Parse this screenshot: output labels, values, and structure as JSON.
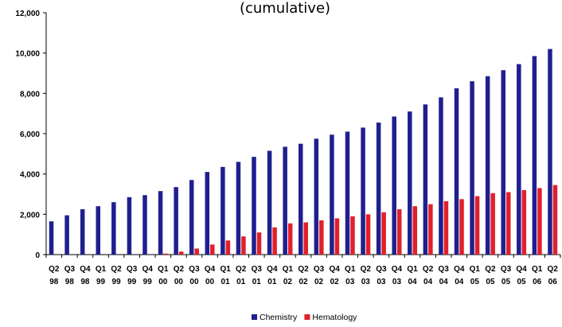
{
  "chart_data": {
    "type": "bar",
    "title": "(cumulative)",
    "xlabel": "",
    "ylabel": "",
    "ylim": [
      0,
      12000
    ],
    "yticks": [
      "0",
      "2,000",
      "4,000",
      "6,000",
      "8,000",
      "10,000",
      "12,000"
    ],
    "ytick_values": [
      0,
      2000,
      4000,
      6000,
      8000,
      10000,
      12000
    ],
    "grid": false,
    "legend_position": "bottom",
    "categories": [
      [
        "Q2",
        "98"
      ],
      [
        "Q3",
        "98"
      ],
      [
        "Q4",
        "98"
      ],
      [
        "Q1",
        "99"
      ],
      [
        "Q2",
        "99"
      ],
      [
        "Q3",
        "99"
      ],
      [
        "Q4",
        "99"
      ],
      [
        "Q1",
        "00"
      ],
      [
        "Q2",
        "00"
      ],
      [
        "Q3",
        "00"
      ],
      [
        "Q4",
        "00"
      ],
      [
        "Q1",
        "01"
      ],
      [
        "Q2",
        "01"
      ],
      [
        "Q3",
        "01"
      ],
      [
        "Q4",
        "01"
      ],
      [
        "Q1",
        "02"
      ],
      [
        "Q2",
        "02"
      ],
      [
        "Q3",
        "02"
      ],
      [
        "Q4",
        "02"
      ],
      [
        "Q1",
        "03"
      ],
      [
        "Q2",
        "03"
      ],
      [
        "Q3",
        "03"
      ],
      [
        "Q4",
        "03"
      ],
      [
        "Q1",
        "04"
      ],
      [
        "Q2",
        "04"
      ],
      [
        "Q3",
        "04"
      ],
      [
        "Q4",
        "04"
      ],
      [
        "Q1",
        "05"
      ],
      [
        "Q2",
        "05"
      ],
      [
        "Q3",
        "05"
      ],
      [
        "Q4",
        "05"
      ],
      [
        "Q1",
        "06"
      ],
      [
        "Q2",
        "06"
      ]
    ],
    "series": [
      {
        "name": "Chemistry",
        "color": "#1f1f8f",
        "values": [
          1650,
          1950,
          2250,
          2400,
          2600,
          2850,
          2950,
          3150,
          3350,
          3700,
          4100,
          4350,
          4600,
          4850,
          5150,
          5350,
          5500,
          5750,
          5950,
          6100,
          6300,
          6550,
          6850,
          7100,
          7450,
          7800,
          8250,
          8600,
          8850,
          9150,
          9450,
          9850,
          10200
        ]
      },
      {
        "name": "Hematology",
        "color": "#e0202c",
        "values": [
          0,
          0,
          0,
          0,
          0,
          0,
          0,
          50,
          150,
          300,
          500,
          700,
          900,
          1100,
          1350,
          1550,
          1600,
          1700,
          1800,
          1900,
          2000,
          2100,
          2250,
          2400,
          2500,
          2650,
          2750,
          2900,
          3050,
          3100,
          3200,
          3300,
          3450
        ]
      }
    ]
  }
}
